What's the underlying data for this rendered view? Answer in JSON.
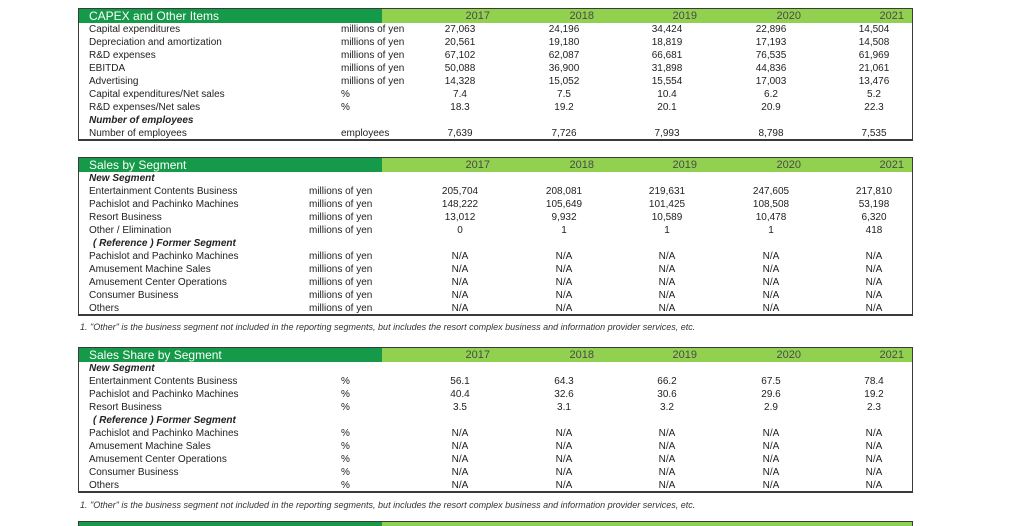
{
  "capex": {
    "title": "CAPEX and Other Items",
    "years": [
      "2017",
      "2018",
      "2019",
      "2020",
      "2021"
    ],
    "rows": [
      {
        "label": "Capital expenditures",
        "unit": "millions of yen",
        "values": [
          "27,063",
          "24,196",
          "34,424",
          "22,896",
          "14,504"
        ]
      },
      {
        "label": "Depreciation and amortization",
        "unit": "millions of yen",
        "values": [
          "20,561",
          "19,180",
          "18,819",
          "17,193",
          "14,508"
        ]
      },
      {
        "label": "R&D expenses",
        "unit": "millions of yen",
        "values": [
          "67,102",
          "62,087",
          "66,681",
          "76,535",
          "61,969"
        ]
      },
      {
        "label": "EBITDA",
        "unit": "millions of yen",
        "values": [
          "50,088",
          "36,900",
          "31,898",
          "44,836",
          "21,061"
        ]
      },
      {
        "label": "Advertising",
        "unit": "millions of yen",
        "values": [
          "14,328",
          "15,052",
          "15,554",
          "17,003",
          "13,476"
        ]
      },
      {
        "label": "Capital expenditures/Net sales",
        "unit": "%",
        "values": [
          "7.4",
          "7.5",
          "10.4",
          "6.2",
          "5.2"
        ]
      },
      {
        "label": "R&D expenses/Net sales",
        "unit": "%",
        "values": [
          "18.3",
          "19.2",
          "20.1",
          "20.9",
          "22.3"
        ]
      }
    ],
    "employees_heading": "Number of employees",
    "employees": {
      "label": "Number of employees",
      "unit": "employees",
      "values": [
        "7,639",
        "7,726",
        "7,993",
        "8,798",
        "7,535"
      ]
    }
  },
  "sales": {
    "title": "Sales by Segment",
    "years": [
      "2017",
      "2018",
      "2019",
      "2020",
      "2021"
    ],
    "new_heading": "New Segment",
    "new_rows": [
      {
        "label": "Entertainment Contents Business",
        "unit": "millions of yen",
        "values": [
          "205,704",
          "208,081",
          "219,631",
          "247,605",
          "217,810"
        ]
      },
      {
        "label": "Pachislot and Pachinko Machines",
        "unit": "millions of yen",
        "values": [
          "148,222",
          "105,649",
          "101,425",
          "108,508",
          "53,198"
        ]
      },
      {
        "label": "Resort Business",
        "unit": "millions of yen",
        "values": [
          "13,012",
          "9,932",
          "10,589",
          "10,478",
          "6,320"
        ]
      },
      {
        "label": "Other / Elimination",
        "unit": "millions of yen",
        "values": [
          "0",
          "1",
          "1",
          "1",
          "418"
        ]
      }
    ],
    "ref_heading": "( Reference ) Former Segment",
    "ref_rows": [
      {
        "label": "Pachislot and Pachinko Machines",
        "unit": "millions of yen",
        "values": [
          "N/A",
          "N/A",
          "N/A",
          "N/A",
          "N/A"
        ]
      },
      {
        "label": "Amusement Machine Sales",
        "unit": "millions of yen",
        "values": [
          "N/A",
          "N/A",
          "N/A",
          "N/A",
          "N/A"
        ]
      },
      {
        "label": "Amusement Center Operations",
        "unit": "millions of yen",
        "values": [
          "N/A",
          "N/A",
          "N/A",
          "N/A",
          "N/A"
        ]
      },
      {
        "label": "Consumer Business",
        "unit": "millions of yen",
        "values": [
          "N/A",
          "N/A",
          "N/A",
          "N/A",
          "N/A"
        ]
      },
      {
        "label": "Others",
        "unit": "millions of yen",
        "values": [
          "N/A",
          "N/A",
          "N/A",
          "N/A",
          "N/A"
        ]
      }
    ],
    "note": "1. \"Other\" is the business segment not included in the reporting segments, but includes the resort complex business and information provider services, etc."
  },
  "share": {
    "title": "Sales Share by Segment",
    "years": [
      "2017",
      "2018",
      "2019",
      "2020",
      "2021"
    ],
    "new_heading": "New Segment",
    "new_rows": [
      {
        "label": "Entertainment Contents Business",
        "unit": "%",
        "values": [
          "56.1",
          "64.3",
          "66.2",
          "67.5",
          "78.4"
        ]
      },
      {
        "label": "Pachislot and Pachinko Machines",
        "unit": "%",
        "values": [
          "40.4",
          "32.6",
          "30.6",
          "29.6",
          "19.2"
        ]
      },
      {
        "label": "Resort Business",
        "unit": "%",
        "values": [
          "3.5",
          "3.1",
          "3.2",
          "2.9",
          "2.3"
        ]
      }
    ],
    "ref_heading": "( Reference ) Former Segment",
    "ref_rows": [
      {
        "label": "Pachislot and Pachinko Machines",
        "unit": "%",
        "values": [
          "N/A",
          "N/A",
          "N/A",
          "N/A",
          "N/A"
        ]
      },
      {
        "label": "Amusement Machine Sales",
        "unit": "%",
        "values": [
          "N/A",
          "N/A",
          "N/A",
          "N/A",
          "N/A"
        ]
      },
      {
        "label": "Amusement Center Operations",
        "unit": "%",
        "values": [
          "N/A",
          "N/A",
          "N/A",
          "N/A",
          "N/A"
        ]
      },
      {
        "label": "Consumer Business",
        "unit": "%",
        "values": [
          "N/A",
          "N/A",
          "N/A",
          "N/A",
          "N/A"
        ]
      },
      {
        "label": "Others",
        "unit": "%",
        "values": [
          "N/A",
          "N/A",
          "N/A",
          "N/A",
          "N/A"
        ]
      }
    ],
    "note": "1. \"Other\" is the business segment not included in the reporting segments, but includes the resort complex business and information provider services, etc."
  },
  "colors": {
    "header_dark": "#149a48",
    "header_light": "#92d050"
  }
}
